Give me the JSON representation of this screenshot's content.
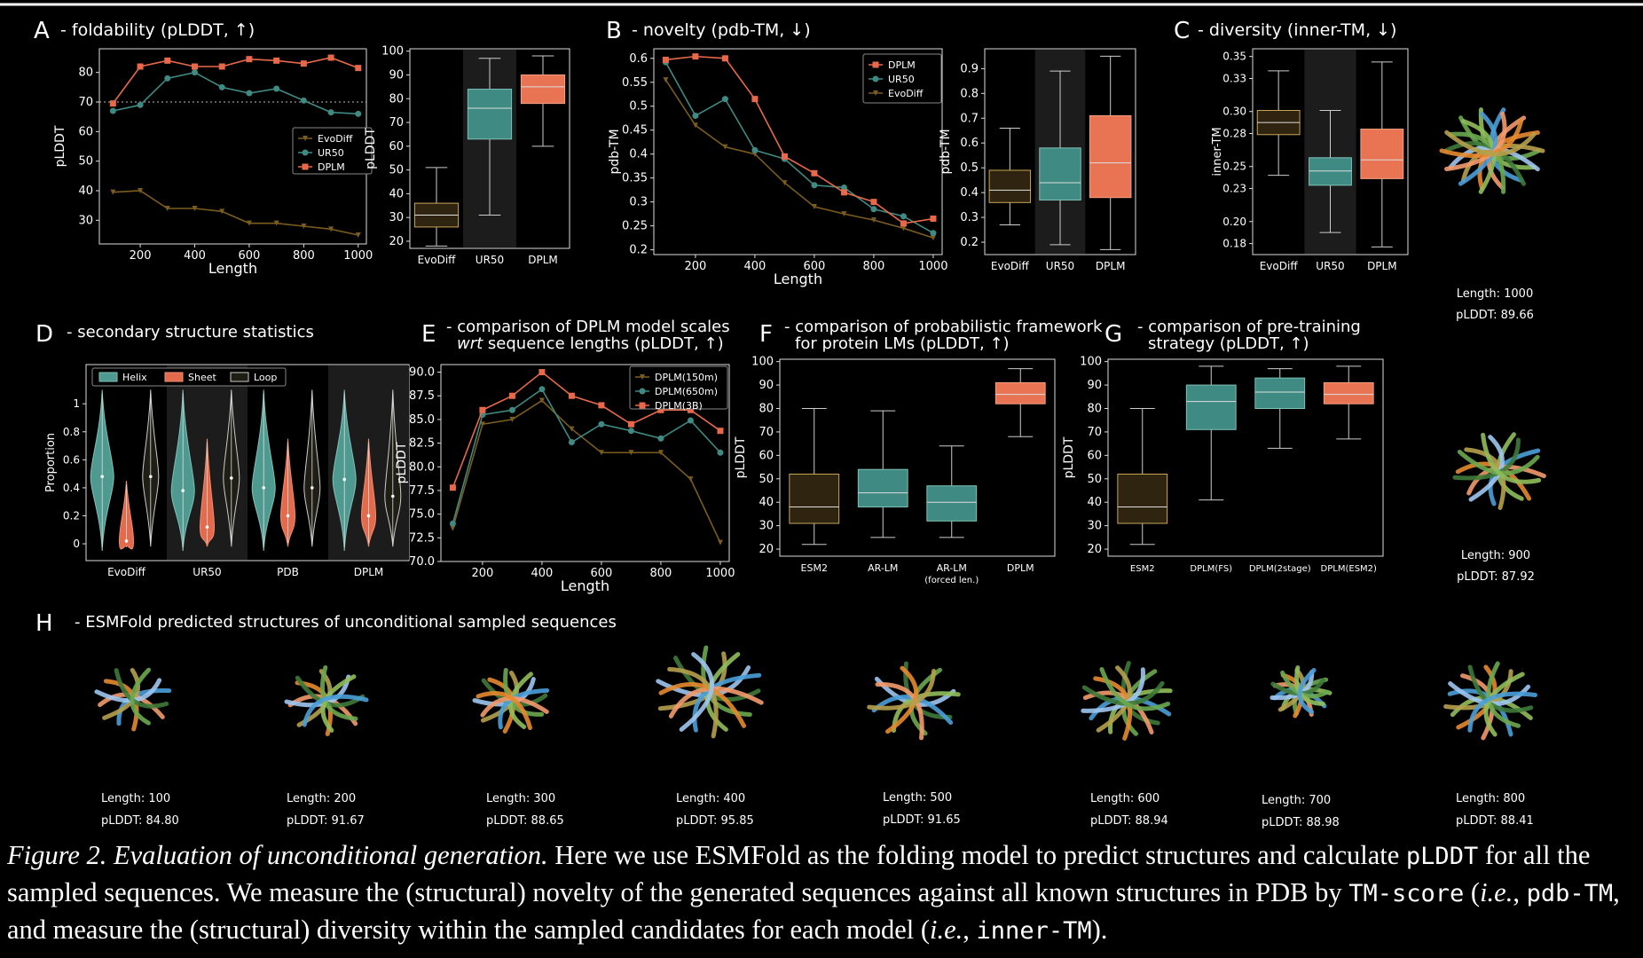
{
  "colors": {
    "evodiff": "#7a5c1e",
    "ur50": "#3f8a82",
    "dplm": "#e8694a",
    "evodiff_box": "#2e2410",
    "ur50_box": "#3f8a82",
    "dplm_box": "#e87453",
    "helix": "#4f9a90",
    "sheet": "#e36a4c",
    "loop": "#2a2a1e"
  },
  "panels": {
    "A": {
      "letter": "A",
      "title": "- foldability (pLDDT, ↑)"
    },
    "B": {
      "letter": "B",
      "title": "- novelty (pdb-TM, ↓)"
    },
    "C": {
      "letter": "C",
      "title": "- diversity (inner-TM, ↓)"
    },
    "D": {
      "letter": "D",
      "title": "- secondary structure statistics"
    },
    "E": {
      "letter": "E",
      "title_line1": "- comparison of DPLM model scales",
      "title_line2_it": "wrt",
      "title_line2": " sequence lengths (pLDDT, ↑)"
    },
    "F": {
      "letter": "F",
      "title_line1": "- comparison of probabilistic framework",
      "title_line2": "for protein LMs (pLDDT, ↑)"
    },
    "G": {
      "letter": "G",
      "title_line1": "- comparison of pre-training",
      "title_line2": "strategy (pLDDT, ↑)"
    },
    "H": {
      "letter": "H",
      "title": "- ESMFold predicted structures of unconditional sampled sequences"
    }
  },
  "side_structures": [
    {
      "length": "Length: 1000",
      "plddt": "pLDDT: 89.66"
    },
    {
      "length": "Length:  900",
      "plddt": "pLDDT: 87.92"
    }
  ],
  "structures": [
    {
      "length": "Length:  100",
      "plddt": "pLDDT: 84.80"
    },
    {
      "length": "Length:  200",
      "plddt": "pLDDT: 91.67"
    },
    {
      "length": "Length:  300",
      "plddt": "pLDDT: 88.65"
    },
    {
      "length": "Length:  400",
      "plddt": "pLDDT: 95.85"
    },
    {
      "length": "Length:  500",
      "plddt": "pLDDT: 91.65"
    },
    {
      "length": "Length:  600",
      "plddt": "pLDDT: 88.94"
    },
    {
      "length": "Length:  700",
      "plddt": "pLDDT: 88.98"
    },
    {
      "length": "Length:  800",
      "plddt": "pLDDT: 88.41"
    }
  ],
  "caption": {
    "fig": "Figure 2.",
    "title": "Evaluation of unconditional generation.",
    "t1": " Here we use ESMFold as the folding model to predict structures and calculate ",
    "c1": "pLDDT",
    "t2": " for all the sampled sequences. We measure the (structural) novelty of the generated sequences against all known structures in PDB by ",
    "c2": "TM-score",
    "t3": " (",
    "ie1": "i.e.",
    "t4": ", ",
    "c3": "pdb-TM",
    "t5": ", and measure the (structural) diversity within the sampled candidates for each model (",
    "ie2": "i.e.",
    "t6": ", ",
    "c4": "inner-TM",
    "t7": ")."
  },
  "chart_data": [
    {
      "id": "A1",
      "type": "line",
      "xlabel": "Length",
      "ylabel": "pLDDT",
      "xlim": [
        50,
        1030
      ],
      "ylim": [
        22,
        88
      ],
      "xticks": [
        200,
        400,
        600,
        800,
        1000
      ],
      "yticks": [
        30,
        40,
        50,
        60,
        70,
        80
      ],
      "hline": 70,
      "x": [
        100,
        200,
        300,
        400,
        500,
        600,
        700,
        800,
        900,
        1000
      ],
      "legend_position": "center-right",
      "series": [
        {
          "name": "EvoDiff",
          "values": [
            39.5,
            40,
            34,
            34,
            33,
            29,
            29,
            28,
            27,
            25
          ]
        },
        {
          "name": "UR50",
          "values": [
            67,
            69,
            78,
            80,
            75,
            73,
            74.5,
            70.5,
            66.5,
            66
          ]
        },
        {
          "name": "DPLM",
          "values": [
            69.5,
            82,
            84,
            82,
            82,
            84.5,
            84,
            83,
            85,
            81.5
          ]
        }
      ]
    },
    {
      "id": "A2",
      "type": "box",
      "ylabel": "pLDDT",
      "categories": [
        "EvoDiff",
        "UR50",
        "DPLM"
      ],
      "ylim": [
        17,
        101
      ],
      "yticks": [
        20,
        30,
        40,
        50,
        60,
        70,
        80,
        90,
        100
      ],
      "boxes": [
        {
          "lo": 18,
          "q1": 26,
          "med": 31,
          "q3": 36,
          "hi": 51
        },
        {
          "lo": 31,
          "q1": 63,
          "med": 76,
          "q3": 84,
          "hi": 97
        },
        {
          "lo": 60,
          "q1": 78,
          "med": 85,
          "q3": 90,
          "hi": 98
        }
      ]
    },
    {
      "id": "B1",
      "type": "line",
      "xlabel": "Length",
      "ylabel": "pdb-TM",
      "xlim": [
        60,
        1030
      ],
      "ylim": [
        0.19,
        0.62
      ],
      "xticks": [
        200,
        400,
        600,
        800,
        1000
      ],
      "yticks": [
        0.2,
        0.25,
        0.3,
        0.35,
        0.4,
        0.45,
        0.5,
        0.55,
        0.6
      ],
      "x": [
        100,
        200,
        300,
        400,
        500,
        600,
        700,
        800,
        900,
        1000
      ],
      "legend_position": "top-right",
      "series": [
        {
          "name": "DPLM",
          "values": [
            0.597,
            0.604,
            0.6,
            0.515,
            0.395,
            0.36,
            0.32,
            0.3,
            0.255,
            0.265
          ]
        },
        {
          "name": "UR50",
          "values": [
            0.592,
            0.48,
            0.515,
            0.408,
            0.39,
            0.335,
            0.33,
            0.285,
            0.27,
            0.235
          ]
        },
        {
          "name": "EvoDiff",
          "values": [
            0.555,
            0.46,
            0.415,
            0.4,
            0.34,
            0.29,
            0.275,
            0.262,
            0.245,
            0.225
          ]
        }
      ]
    },
    {
      "id": "B2",
      "type": "box",
      "ylabel": "pdb-TM",
      "categories": [
        "EvoDiff",
        "UR50",
        "DPLM"
      ],
      "ylim": [
        0.15,
        0.98
      ],
      "yticks": [
        0.2,
        0.3,
        0.4,
        0.5,
        0.6,
        0.7,
        0.8,
        0.9
      ],
      "boxes": [
        {
          "lo": 0.27,
          "q1": 0.36,
          "med": 0.41,
          "q3": 0.49,
          "hi": 0.66
        },
        {
          "lo": 0.19,
          "q1": 0.37,
          "med": 0.44,
          "q3": 0.58,
          "hi": 0.89
        },
        {
          "lo": 0.17,
          "q1": 0.38,
          "med": 0.52,
          "q3": 0.71,
          "hi": 0.95
        }
      ]
    },
    {
      "id": "C1",
      "type": "box",
      "ylabel": "inner-TM",
      "categories": [
        "EvoDiff",
        "UR50",
        "DPLM"
      ],
      "ylim": [
        0.17,
        0.357
      ],
      "yticks": [
        0.18,
        0.2,
        0.23,
        0.25,
        0.28,
        0.3,
        0.33,
        0.35
      ],
      "ytick_labels": [
        "0.18",
        "0.20",
        "0.23",
        "0.25",
        "0.28",
        "0.30",
        "0.33",
        "0.35"
      ],
      "boxes": [
        {
          "lo": 0.242,
          "q1": 0.279,
          "med": 0.29,
          "q3": 0.301,
          "hi": 0.337
        },
        {
          "lo": 0.19,
          "q1": 0.233,
          "med": 0.246,
          "q3": 0.258,
          "hi": 0.301
        },
        {
          "lo": 0.177,
          "q1": 0.239,
          "med": 0.256,
          "q3": 0.284,
          "hi": 0.345
        }
      ]
    },
    {
      "id": "D",
      "type": "violin",
      "ylabel": "Proportion",
      "categories": [
        "EvoDiff",
        "UR50",
        "PDB",
        "DPLM"
      ],
      "ylim": [
        -0.12,
        1.28
      ],
      "yticks": [
        0.0,
        0.2,
        0.4,
        0.6,
        0.8,
        1.0
      ],
      "legend": [
        "Helix",
        "Sheet",
        "Loop"
      ],
      "medians": [
        [
          0.48,
          0.02,
          0.48
        ],
        [
          0.38,
          0.12,
          0.47
        ],
        [
          0.4,
          0.2,
          0.4
        ],
        [
          0.46,
          0.2,
          0.34
        ]
      ]
    },
    {
      "id": "E",
      "type": "line",
      "xlabel": "Length",
      "ylabel": "pLDDT",
      "xlim": [
        60,
        1030
      ],
      "ylim": [
        70,
        90.8
      ],
      "xticks": [
        200,
        400,
        600,
        800,
        1000
      ],
      "yticks": [
        70.0,
        72.5,
        75.0,
        77.5,
        80.0,
        82.5,
        85.0,
        87.5,
        90.0
      ],
      "ytick_labels": [
        "70.0",
        "72.5",
        "75.0",
        "77.5",
        "80.0",
        "82.5",
        "85.0",
        "87.5",
        "90.0"
      ],
      "x": [
        100,
        200,
        300,
        400,
        500,
        600,
        700,
        800,
        900,
        1000
      ],
      "legend_position": "top-right",
      "series": [
        {
          "name": "DPLM(150m)",
          "values": [
            73.5,
            84.5,
            85,
            87,
            84,
            81.5,
            81.5,
            81.5,
            78.7,
            72
          ]
        },
        {
          "name": "DPLM(650m)",
          "values": [
            74,
            85.5,
            86,
            88.2,
            82.6,
            84.5,
            83.8,
            83,
            84.9,
            81.5
          ]
        },
        {
          "name": "DPLM(3B)",
          "values": [
            77.8,
            86,
            87.5,
            90,
            87.5,
            86.5,
            84.5,
            86,
            86,
            83.8
          ]
        }
      ]
    },
    {
      "id": "F",
      "type": "box",
      "ylabel": "pLDDT",
      "categories": [
        "ESM2",
        "AR-LM",
        "AR-LM",
        "DPLM"
      ],
      "category_sub": [
        "",
        "",
        "(forced len.)",
        ""
      ],
      "ylim": [
        17,
        101
      ],
      "yticks": [
        20,
        30,
        40,
        50,
        60,
        70,
        80,
        90,
        100
      ],
      "boxes": [
        {
          "lo": 22,
          "q1": 31,
          "med": 38,
          "q3": 52,
          "hi": 80
        },
        {
          "lo": 25,
          "q1": 38,
          "med": 44,
          "q3": 54,
          "hi": 79
        },
        {
          "lo": 25,
          "q1": 32,
          "med": 40,
          "q3": 47,
          "hi": 64
        },
        {
          "lo": 68,
          "q1": 82,
          "med": 86,
          "q3": 91,
          "hi": 97
        }
      ]
    },
    {
      "id": "G",
      "type": "box",
      "ylabel": "pLDDT",
      "categories": [
        "ESM2",
        "DPLM(FS)",
        "DPLM(2stage)",
        "DPLM(ESM2)"
      ],
      "ylim": [
        17,
        101
      ],
      "yticks": [
        20,
        30,
        40,
        50,
        60,
        70,
        80,
        90,
        100
      ],
      "boxes": [
        {
          "lo": 22,
          "q1": 31,
          "med": 38,
          "q3": 52,
          "hi": 80
        },
        {
          "lo": 41,
          "q1": 71,
          "med": 83,
          "q3": 90,
          "hi": 98
        },
        {
          "lo": 63,
          "q1": 80,
          "med": 87,
          "q3": 93,
          "hi": 97
        },
        {
          "lo": 67,
          "q1": 82,
          "med": 86,
          "q3": 91,
          "hi": 98
        }
      ]
    }
  ]
}
